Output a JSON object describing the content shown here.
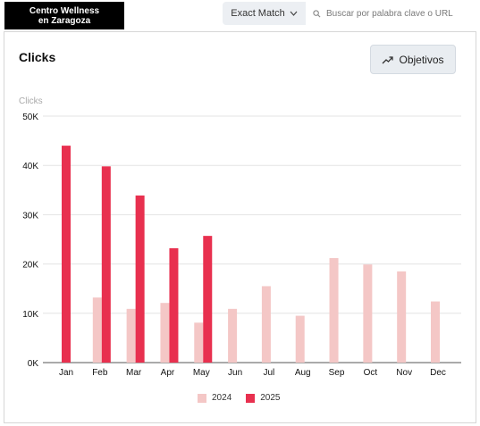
{
  "brand": {
    "line1": "Centro Wellness",
    "line2": "en Zaragoza"
  },
  "toolbar": {
    "match_type": "Exact Match",
    "search_placeholder": "Buscar por palabra clave o URL"
  },
  "card": {
    "title": "Clicks",
    "objectives_label": "Objetivos"
  },
  "colors": {
    "series_2024": "#f4c7c6",
    "series_2025": "#e8304f"
  },
  "chart_data": {
    "type": "bar",
    "ylabel": "Clicks",
    "ylim": [
      0,
      50000
    ],
    "yticks": [
      {
        "value": 0,
        "label": "0K"
      },
      {
        "value": 10000,
        "label": "10K"
      },
      {
        "value": 20000,
        "label": "20K"
      },
      {
        "value": 30000,
        "label": "30K"
      },
      {
        "value": 40000,
        "label": "40K"
      },
      {
        "value": 50000,
        "label": "50K"
      }
    ],
    "categories": [
      "Jan",
      "Feb",
      "Mar",
      "Apr",
      "May",
      "Jun",
      "Jul",
      "Aug",
      "Sep",
      "Oct",
      "Nov",
      "Dec"
    ],
    "series": [
      {
        "name": "2024",
        "color": "#f4c7c6",
        "values": [
          null,
          13200,
          10900,
          12100,
          8100,
          10900,
          15500,
          9500,
          21200,
          19900,
          18500,
          12400
        ]
      },
      {
        "name": "2025",
        "color": "#e8304f",
        "values": [
          44000,
          39800,
          33900,
          23200,
          25700,
          null,
          null,
          null,
          null,
          null,
          null,
          null
        ]
      }
    ],
    "grid": true,
    "legend": "bottom-center"
  }
}
